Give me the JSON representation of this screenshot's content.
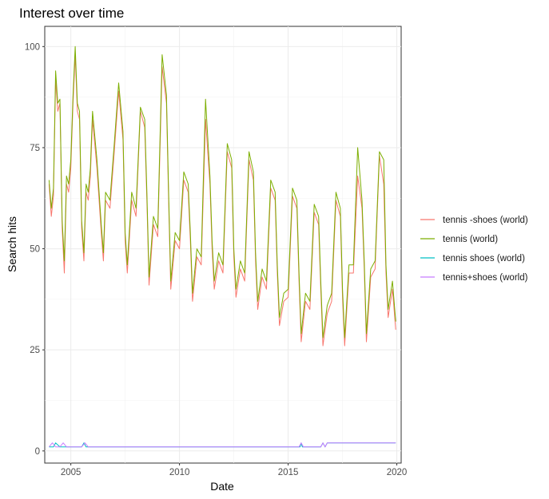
{
  "chart_data": {
    "type": "line",
    "title": "Interest over time",
    "xlabel": "Date",
    "ylabel": "Search hits",
    "xlim": [
      2003.8,
      2020.2
    ],
    "ylim": [
      -3,
      105
    ],
    "x_ticks": [
      2005,
      2010,
      2015,
      2020
    ],
    "x_tick_labels": [
      "2005",
      "2010",
      "2015",
      "2020"
    ],
    "y_ticks": [
      0,
      25,
      50,
      75,
      100
    ],
    "y_tick_labels": [
      "0",
      "25",
      "50",
      "75",
      "100"
    ],
    "grid": true,
    "legend_position": "right",
    "series": [
      {
        "name": "tennis -shoes (world)",
        "color": "#F8766D",
        "x": [
          2004.0,
          2004.1,
          2004.2,
          2004.3,
          2004.4,
          2004.5,
          2004.6,
          2004.7,
          2004.8,
          2004.9,
          2005.0,
          2005.1,
          2005.2,
          2005.3,
          2005.4,
          2005.5,
          2005.6,
          2005.7,
          2005.8,
          2005.9,
          2006.0,
          2006.2,
          2006.4,
          2006.5,
          2006.6,
          2006.8,
          2007.0,
          2007.2,
          2007.4,
          2007.5,
          2007.6,
          2007.8,
          2008.0,
          2008.2,
          2008.4,
          2008.5,
          2008.6,
          2008.8,
          2009.0,
          2009.2,
          2009.4,
          2009.5,
          2009.6,
          2009.8,
          2010.0,
          2010.2,
          2010.4,
          2010.5,
          2010.6,
          2010.8,
          2011.0,
          2011.2,
          2011.4,
          2011.5,
          2011.6,
          2011.8,
          2012.0,
          2012.2,
          2012.4,
          2012.5,
          2012.6,
          2012.8,
          2013.0,
          2013.2,
          2013.4,
          2013.5,
          2013.6,
          2013.8,
          2014.0,
          2014.2,
          2014.4,
          2014.5,
          2014.6,
          2014.8,
          2015.0,
          2015.2,
          2015.4,
          2015.5,
          2015.6,
          2015.8,
          2016.0,
          2016.2,
          2016.4,
          2016.5,
          2016.6,
          2016.8,
          2017.0,
          2017.2,
          2017.4,
          2017.5,
          2017.6,
          2017.8,
          2018.0,
          2018.2,
          2018.4,
          2018.5,
          2018.6,
          2018.8,
          2019.0,
          2019.2,
          2019.4,
          2019.5,
          2019.6,
          2019.8,
          2019.95
        ],
        "values": [
          66,
          58,
          63,
          92,
          84,
          86,
          55,
          44,
          66,
          64,
          70,
          86,
          98,
          84,
          82,
          55,
          47,
          64,
          62,
          68,
          82,
          70,
          54,
          47,
          62,
          60,
          74,
          89,
          77,
          52,
          44,
          62,
          58,
          84,
          80,
          62,
          41,
          56,
          53,
          95,
          86,
          62,
          40,
          52,
          50,
          67,
          64,
          52,
          37,
          48,
          46,
          82,
          66,
          50,
          40,
          47,
          44,
          74,
          70,
          48,
          38,
          45,
          42,
          72,
          67,
          47,
          35,
          43,
          40,
          65,
          62,
          44,
          31,
          37,
          38,
          63,
          60,
          42,
          27,
          37,
          35,
          59,
          56,
          40,
          26,
          34,
          37,
          62,
          58,
          38,
          26,
          44,
          44,
          68,
          60,
          45,
          27,
          43,
          45,
          73,
          66,
          44,
          33,
          40,
          30
        ]
      },
      {
        "name": "tennis (world)",
        "color": "#7CAE00",
        "x": [
          2004.0,
          2004.1,
          2004.2,
          2004.3,
          2004.4,
          2004.5,
          2004.6,
          2004.7,
          2004.8,
          2004.9,
          2005.0,
          2005.1,
          2005.2,
          2005.3,
          2005.4,
          2005.5,
          2005.6,
          2005.7,
          2005.8,
          2005.9,
          2006.0,
          2006.2,
          2006.4,
          2006.5,
          2006.6,
          2006.8,
          2007.0,
          2007.2,
          2007.4,
          2007.5,
          2007.6,
          2007.8,
          2008.0,
          2008.2,
          2008.4,
          2008.5,
          2008.6,
          2008.8,
          2009.0,
          2009.2,
          2009.4,
          2009.5,
          2009.6,
          2009.8,
          2010.0,
          2010.2,
          2010.4,
          2010.5,
          2010.6,
          2010.8,
          2011.0,
          2011.2,
          2011.4,
          2011.5,
          2011.6,
          2011.8,
          2012.0,
          2012.2,
          2012.4,
          2012.5,
          2012.6,
          2012.8,
          2013.0,
          2013.2,
          2013.4,
          2013.5,
          2013.6,
          2013.8,
          2014.0,
          2014.2,
          2014.4,
          2014.5,
          2014.6,
          2014.8,
          2015.0,
          2015.2,
          2015.4,
          2015.5,
          2015.6,
          2015.8,
          2016.0,
          2016.2,
          2016.4,
          2016.5,
          2016.6,
          2016.8,
          2017.0,
          2017.2,
          2017.4,
          2017.5,
          2017.6,
          2017.8,
          2018.0,
          2018.2,
          2018.4,
          2018.5,
          2018.6,
          2018.8,
          2019.0,
          2019.2,
          2019.4,
          2019.5,
          2019.6,
          2019.8,
          2019.95
        ],
        "values": [
          67,
          60,
          65,
          94,
          86,
          87,
          57,
          47,
          68,
          66,
          72,
          88,
          100,
          86,
          84,
          57,
          49,
          66,
          64,
          70,
          84,
          72,
          56,
          49,
          64,
          62,
          76,
          91,
          79,
          54,
          46,
          64,
          60,
          85,
          82,
          64,
          43,
          58,
          55,
          98,
          88,
          64,
          42,
          54,
          52,
          69,
          66,
          54,
          39,
          50,
          48,
          87,
          68,
          52,
          42,
          49,
          46,
          76,
          72,
          50,
          40,
          47,
          44,
          74,
          69,
          49,
          37,
          45,
          42,
          67,
          64,
          46,
          33,
          39,
          40,
          65,
          62,
          44,
          29,
          39,
          37,
          61,
          58,
          42,
          28,
          36,
          39,
          64,
          60,
          40,
          28,
          46,
          46,
          75,
          62,
          47,
          29,
          45,
          47,
          74,
          72,
          46,
          35,
          42,
          32
        ]
      },
      {
        "name": "tennis shoes (world)",
        "color": "#00BFC4",
        "x": [
          2004.0,
          2004.2,
          2004.3,
          2004.5,
          2004.6,
          2004.7,
          2005.5,
          2005.6,
          2005.7,
          2015.55,
          2015.6,
          2015.65,
          2016.5,
          2016.6,
          2016.7,
          2016.8,
          2016.9,
          2019.95
        ],
        "values": [
          1,
          1,
          2,
          1,
          1,
          1,
          1,
          2,
          1,
          1,
          2,
          1,
          1,
          2,
          1,
          2,
          2,
          2
        ]
      },
      {
        "name": "tennis+shoes (world)",
        "color": "#C77CFF",
        "x": [
          2004.0,
          2004.15,
          2004.3,
          2004.5,
          2004.65,
          2004.8,
          2005.5,
          2005.65,
          2005.8,
          2015.5,
          2015.6,
          2015.7,
          2016.5,
          2016.6,
          2016.7,
          2016.8,
          2016.9,
          2019.95
        ],
        "values": [
          1,
          2,
          1,
          1,
          2,
          1,
          1,
          2,
          1,
          1,
          2,
          1,
          1,
          2,
          1,
          2,
          2,
          2
        ]
      }
    ]
  }
}
